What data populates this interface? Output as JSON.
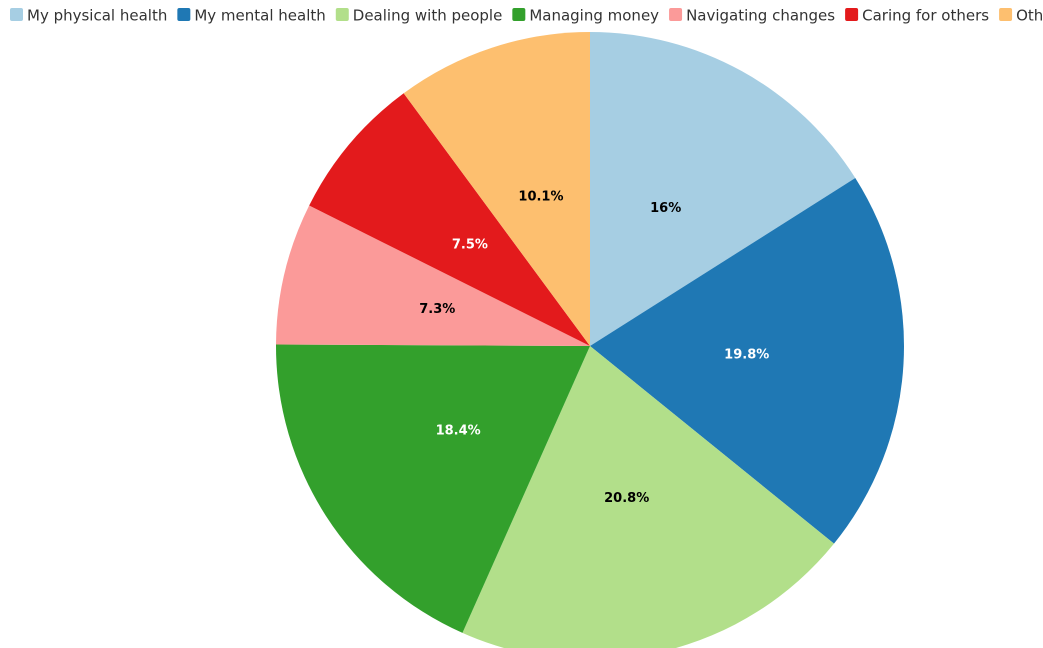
{
  "chart_data": {
    "type": "pie",
    "categories": [
      "My physical health",
      "My mental health",
      "Dealing with people",
      "Managing money",
      "Navigating changes",
      "Caring for others",
      "Other"
    ],
    "values": [
      16,
      19.8,
      20.8,
      18.4,
      7.3,
      7.5,
      10.1
    ],
    "value_labels": [
      "16%",
      "19.8%",
      "20.8%",
      "18.4%",
      "7.3%",
      "7.5%",
      "10.1%"
    ],
    "colors": [
      "#a6cee3",
      "#1f78b4",
      "#b2df8a",
      "#33a02c",
      "#fb9a99",
      "#e31a1c",
      "#fdbf6f"
    ],
    "legend": "top"
  }
}
